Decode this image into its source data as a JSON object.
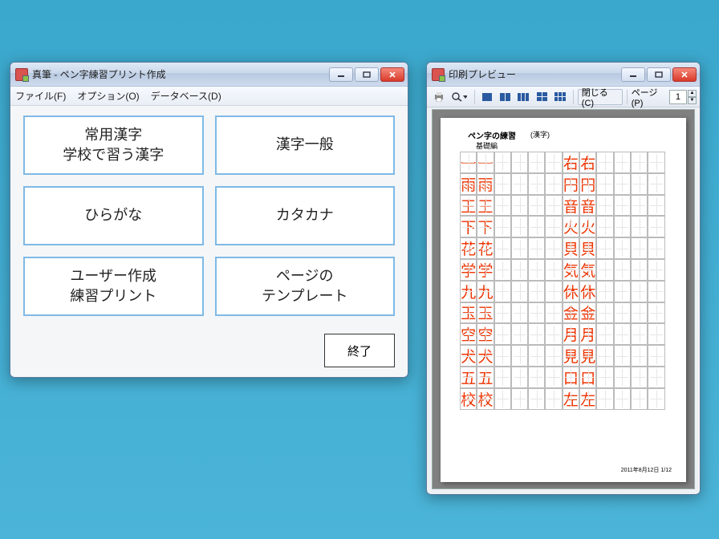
{
  "main": {
    "title": "真筆 - ペン字練習プリント作成",
    "menu": {
      "file": "ファイル(F)",
      "option": "オプション(O)",
      "database": "データベース(D)"
    },
    "buttons": {
      "joyo": "常用漢字\n学校で習う漢字",
      "general": "漢字一般",
      "hira": "ひらがな",
      "kata": "カタカナ",
      "user": "ユーザー作成\n練習プリント",
      "template": "ページの\nテンプレート"
    },
    "exit": "終了"
  },
  "preview": {
    "title": "印刷プレビュー",
    "close": "閉じる(C)",
    "page_label": "ページ(P)",
    "page_value": "1",
    "doc": {
      "title": "ペン字の練習",
      "subtitle": "(漢字)",
      "level": "基礎編",
      "footer": "2011年8月12日 1/12",
      "rows_left": [
        "一",
        "雨",
        "王",
        "下",
        "花",
        "学",
        "九",
        "玉",
        "空",
        "犬",
        "五",
        "校"
      ],
      "rows_right": [
        "右",
        "円",
        "音",
        "火",
        "貝",
        "気",
        "休",
        "金",
        "月",
        "見",
        "口",
        "左"
      ]
    }
  }
}
